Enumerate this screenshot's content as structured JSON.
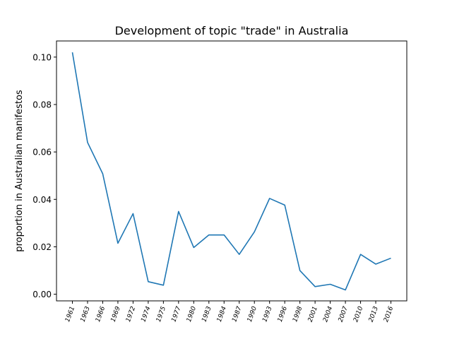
{
  "chart_data": {
    "type": "line",
    "title": "Development of topic \"trade\" in Australia",
    "xlabel": "",
    "ylabel": "proportion in Australian manifestos",
    "ylim": [
      -0.0028,
      0.1068
    ],
    "yticks": [
      0.0,
      0.02,
      0.04,
      0.06,
      0.08,
      0.1
    ],
    "ytick_labels": [
      "0.00",
      "0.02",
      "0.04",
      "0.06",
      "0.08",
      "0.10"
    ],
    "categories": [
      "1961",
      "1963",
      "1966",
      "1969",
      "1972",
      "1974",
      "1975",
      "1977",
      "1980",
      "1983",
      "1984",
      "1987",
      "1990",
      "1993",
      "1996",
      "1998",
      "2001",
      "2004",
      "2007",
      "2010",
      "2013",
      "2016"
    ],
    "series": [
      {
        "color": "#1f77b4",
        "values": [
          0.102,
          0.064,
          0.0508,
          0.0215,
          0.034,
          0.0053,
          0.0038,
          0.0349,
          0.0197,
          0.025,
          0.025,
          0.0168,
          0.0263,
          0.0404,
          0.0376,
          0.01,
          0.0032,
          0.0042,
          0.0018,
          0.0168,
          0.0127,
          0.0152
        ]
      }
    ],
    "grid": false,
    "legend": false
  }
}
